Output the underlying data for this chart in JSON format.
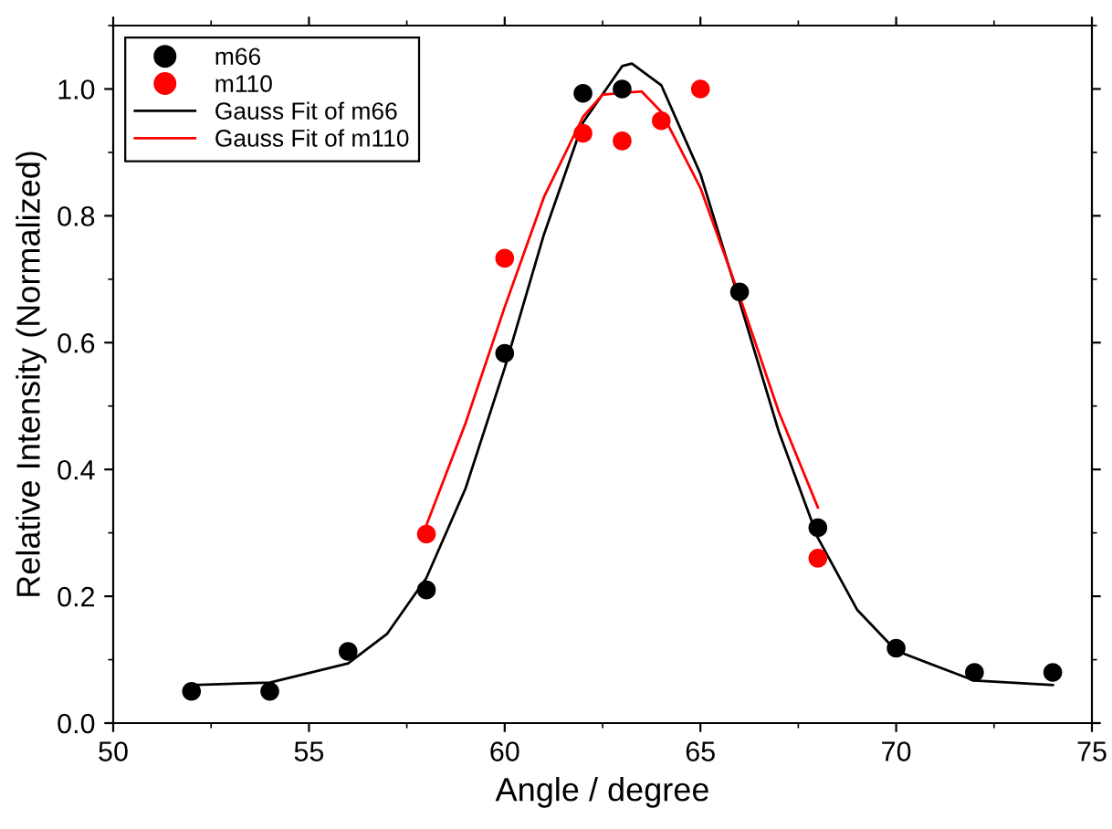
{
  "chart_data": {
    "type": "scatter",
    "xlabel": "Angle / degree",
    "ylabel": "Relative Intensity (Normalized)",
    "xlim": [
      50,
      75
    ],
    "xticks": [
      50,
      55,
      60,
      65,
      70,
      75
    ],
    "ylim": [
      0,
      1.1
    ],
    "yticks": [
      {
        "value": 0,
        "label": "0.0"
      },
      {
        "value": 0.2,
        "label": "0.2"
      },
      {
        "value": 0.4,
        "label": "0.4"
      },
      {
        "value": 0.6,
        "label": "0.6"
      },
      {
        "value": 0.8,
        "label": "0.8"
      },
      {
        "value": 1.0,
        "label": "1.0"
      }
    ],
    "grid": false,
    "legend": "top left",
    "series": [
      {
        "name": "m66",
        "marker": "circle",
        "color": "#000000",
        "x": [
          52,
          54,
          56,
          58,
          60,
          62,
          63,
          66,
          68,
          70,
          72,
          74
        ],
        "values": [
          0.05,
          0.05,
          0.113,
          0.21,
          0.583,
          0.993,
          1.0,
          0.68,
          0.308,
          0.118,
          0.08,
          0.08
        ]
      },
      {
        "name": "m110",
        "marker": "circle",
        "color": "#ff0000",
        "x": [
          58,
          60,
          62,
          63,
          64,
          65,
          68
        ],
        "values": [
          0.298,
          0.733,
          0.93,
          0.918,
          0.95,
          1.0,
          0.26
        ]
      },
      {
        "name": "Gauss Fit of m66",
        "type": "line",
        "marker": "none",
        "color": "#000000",
        "x": [
          52,
          54,
          56,
          57,
          58,
          59,
          60,
          61,
          62,
          63,
          63.25,
          64,
          65,
          66,
          67,
          68,
          69,
          70,
          72,
          74
        ],
        "values": [
          0.06,
          0.064,
          0.094,
          0.141,
          0.229,
          0.37,
          0.56,
          0.77,
          0.947,
          1.036,
          1.04,
          1.006,
          0.866,
          0.665,
          0.46,
          0.292,
          0.179,
          0.114,
          0.067,
          0.06
        ]
      },
      {
        "name": "Gauss Fit of m110",
        "type": "line",
        "marker": "none",
        "color": "#ff0000",
        "x": [
          58,
          59,
          60,
          61,
          62,
          62.5,
          63.5,
          64,
          65,
          66,
          67,
          68
        ],
        "values": [
          0.312,
          0.473,
          0.656,
          0.829,
          0.956,
          0.991,
          0.996,
          0.964,
          0.844,
          0.673,
          0.491,
          0.34
        ]
      }
    ]
  }
}
